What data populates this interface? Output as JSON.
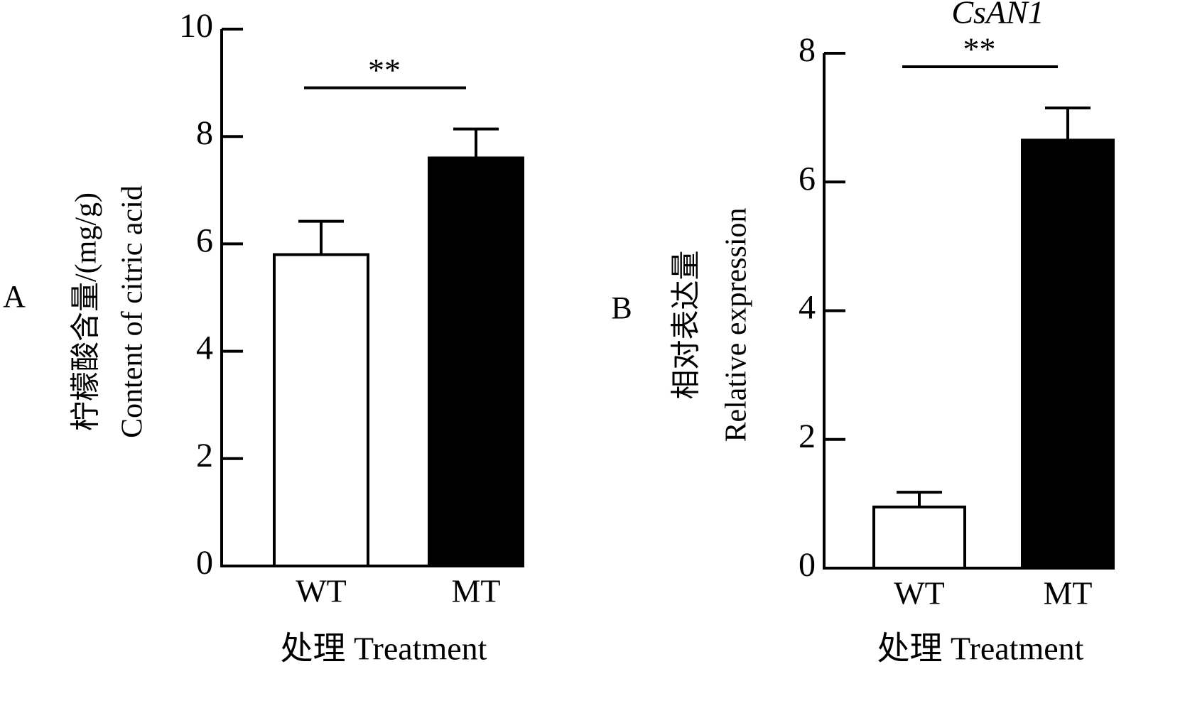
{
  "chart_data": [
    {
      "type": "bar",
      "panel": "A",
      "ylabel": [
        "柠檬酸含量/(mg/g)",
        "Content of citric acid"
      ],
      "xlabel": "处理 Treatment",
      "categories": [
        "WT",
        "MT"
      ],
      "values": [
        5.8,
        7.6
      ],
      "errors": [
        0.62,
        0.54
      ],
      "colors": [
        "#ffffff",
        "#000000"
      ],
      "ylim": [
        0,
        10
      ],
      "yticks": [
        0,
        2,
        4,
        6,
        8,
        10
      ],
      "significance": "**"
    },
    {
      "type": "bar",
      "panel": "B",
      "title": "CsAN1",
      "ylabel": [
        "相对表达量",
        "Relative expression"
      ],
      "xlabel": "处理 Treatment",
      "categories": [
        "WT",
        "MT"
      ],
      "values": [
        0.95,
        6.65
      ],
      "errors": [
        0.23,
        0.5
      ],
      "colors": [
        "#ffffff",
        "#000000"
      ],
      "ylim": [
        0,
        8
      ],
      "yticks": [
        0,
        2,
        4,
        6,
        8
      ],
      "significance": "**"
    }
  ]
}
